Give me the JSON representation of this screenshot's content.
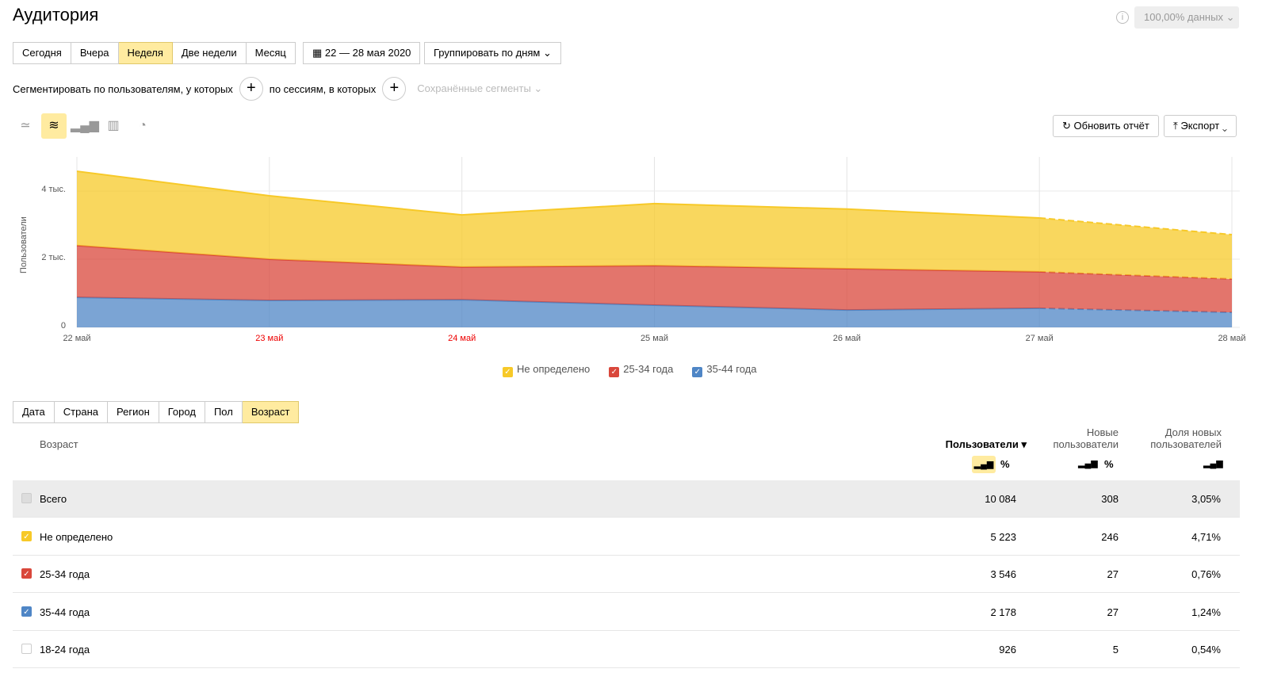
{
  "title": "Аудитория",
  "data_share": "100,00% данных",
  "periods": [
    "Сегодня",
    "Вчера",
    "Неделя",
    "Две недели",
    "Месяц"
  ],
  "active_period": "Неделя",
  "date_range": "22 — 28 мая 2020",
  "group_by": "Группировать по дням",
  "segment": {
    "users_label": "Сегментировать по пользователям, у которых",
    "sessions_label": "по сессиям, в которых",
    "saved": "Сохранённые сегменты"
  },
  "refresh": "Обновить отчёт",
  "export": "Экспорт",
  "chart_data": {
    "type": "area",
    "stacked": true,
    "ylabel": "Пользователи",
    "x": [
      "22 май",
      "23 май",
      "24 май",
      "25 май",
      "26 май",
      "27 май",
      "28 май"
    ],
    "weekend": [
      false,
      true,
      true,
      false,
      false,
      false,
      false
    ],
    "yticks": [
      {
        "v": 0,
        "label": "0"
      },
      {
        "v": 2000,
        "label": "2 тыс."
      },
      {
        "v": 4000,
        "label": "4 тыс."
      }
    ],
    "ylim": [
      0,
      5000
    ],
    "dashed_from_index": 5,
    "series": [
      {
        "name": "35-44 года",
        "color": "#4f86c6",
        "values": [
          880,
          790,
          810,
          650,
          510,
          560,
          440
        ]
      },
      {
        "name": "25-34 года",
        "color": "#d9473b",
        "values": [
          1520,
          1210,
          960,
          1160,
          1210,
          1070,
          980
        ]
      },
      {
        "name": "Не определено",
        "color": "#f7c928",
        "values": [
          2180,
          1860,
          1530,
          1820,
          1750,
          1580,
          1300
        ]
      }
    ],
    "legend": [
      {
        "name": "Не определено",
        "color": "#f7c928"
      },
      {
        "name": "25-34 года",
        "color": "#d9473b"
      },
      {
        "name": "35-44 года",
        "color": "#4f86c6"
      }
    ]
  },
  "dim_tabs": [
    "Дата",
    "Страна",
    "Регион",
    "Город",
    "Пол",
    "Возраст"
  ],
  "table": {
    "dim_header": "Возраст",
    "col1": "Пользователи",
    "col2": [
      "Новые",
      "пользователи"
    ],
    "col3": [
      "Доля новых",
      "пользователей"
    ],
    "pct": "%",
    "rows": [
      {
        "label": "Всего",
        "users": "10 084",
        "new": "308",
        "share": "3,05%",
        "check": "#ddd",
        "on": false
      },
      {
        "label": "Не определено",
        "users": "5 223",
        "new": "246",
        "share": "4,71%",
        "check": "#f7c928",
        "on": true
      },
      {
        "label": "25-34 года",
        "users": "3 546",
        "new": "27",
        "share": "0,76%",
        "check": "#d9473b",
        "on": true
      },
      {
        "label": "35-44 года",
        "users": "2 178",
        "new": "27",
        "share": "1,24%",
        "check": "#4f86c6",
        "on": true
      },
      {
        "label": "18-24 года",
        "users": "926",
        "new": "5",
        "share": "0,54%",
        "check": "#fff",
        "on": false
      }
    ]
  }
}
